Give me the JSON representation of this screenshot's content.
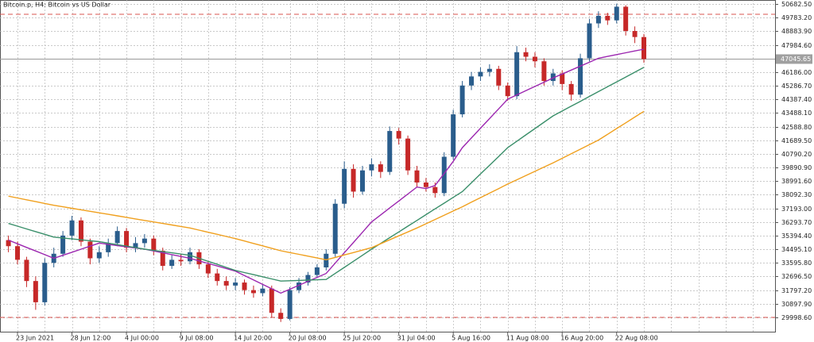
{
  "chart_data": {
    "type": "candlestick",
    "title": "Bitcoin.p, H4:  Bitcoin vs US Dollar",
    "categories": [
      null,
      "23 Jun 2021",
      null,
      null,
      null,
      null,
      null,
      "28 Jun 12:00",
      null,
      null,
      null,
      null,
      null,
      "4 Jul 00:00",
      null,
      null,
      null,
      null,
      null,
      "9 Jul 08:00",
      null,
      null,
      null,
      null,
      null,
      "14 Jul 20:00",
      null,
      null,
      null,
      null,
      null,
      "20 Jul 08:00",
      null,
      null,
      null,
      null,
      null,
      "25 Jul 20:00",
      null,
      null,
      null,
      null,
      null,
      "31 Jul 04:00",
      null,
      null,
      null,
      null,
      null,
      "5 Aug 16:00",
      null,
      null,
      null,
      null,
      null,
      "11 Aug 08:00",
      null,
      null,
      null,
      null,
      null,
      "16 Aug 20:00",
      null,
      null,
      null,
      null,
      null,
      "22 Aug 08:00",
      null,
      null,
      null
    ],
    "open": [
      35100,
      34700,
      33800,
      32400,
      31000,
      33600,
      34200,
      35400,
      36400,
      35000,
      33900,
      34300,
      34900,
      35700,
      34600,
      34900,
      35200,
      34400,
      33400,
      33800,
      33700,
      34300,
      33500,
      32900,
      32400,
      32100,
      32300,
      31800,
      31600,
      31900,
      30300,
      29900,
      31800,
      32300,
      32800,
      33300,
      34200,
      37500,
      39800,
      38300,
      39700,
      40100,
      39600,
      42300,
      41800,
      39700,
      38900,
      38600,
      38200,
      40600,
      43400,
      45300,
      45900,
      46200,
      46400,
      45300,
      44600,
      47500,
      47200,
      46900,
      45600,
      46100,
      45400,
      44700,
      47100,
      49400,
      49900,
      49600,
      50500,
      48900,
      48500
    ],
    "high": [
      35400,
      35000,
      34000,
      32700,
      33900,
      34600,
      35700,
      36700,
      36600,
      35200,
      34700,
      35200,
      36000,
      35900,
      35300,
      35500,
      35400,
      34600,
      34100,
      34200,
      34600,
      34500,
      33700,
      33200,
      32700,
      32600,
      32500,
      32100,
      32200,
      32100,
      30600,
      32000,
      32600,
      33000,
      33500,
      34500,
      37800,
      40300,
      40100,
      40000,
      40500,
      40300,
      42600,
      42500,
      42000,
      40000,
      39200,
      38900,
      40900,
      43700,
      45600,
      46200,
      46500,
      46700,
      46600,
      45500,
      47900,
      47800,
      47500,
      47100,
      46400,
      46300,
      45600,
      47400,
      49700,
      50200,
      50100,
      50700,
      50600,
      49200,
      48700
    ],
    "low": [
      34300,
      33500,
      32000,
      30500,
      30800,
      33300,
      34000,
      35100,
      34700,
      33500,
      33600,
      34000,
      34700,
      34300,
      34300,
      34600,
      34100,
      33100,
      33200,
      33400,
      33500,
      33200,
      32600,
      32100,
      31800,
      31800,
      31500,
      31300,
      31400,
      30000,
      29700,
      29800,
      31600,
      32100,
      32600,
      33100,
      34000,
      37200,
      37900,
      38100,
      39300,
      39200,
      39400,
      41400,
      39400,
      38600,
      38300,
      37900,
      38000,
      40400,
      43200,
      45000,
      45600,
      45900,
      45000,
      44300,
      44400,
      46900,
      46500,
      45300,
      45300,
      45000,
      44300,
      44500,
      46900,
      49100,
      49300,
      49400,
      48600,
      48100,
      46800
    ],
    "close": [
      34700,
      33800,
      32400,
      31000,
      33600,
      34200,
      35400,
      36400,
      35000,
      33900,
      34300,
      34900,
      35700,
      34600,
      34900,
      35200,
      34400,
      33400,
      33800,
      33700,
      34300,
      33500,
      32900,
      32400,
      32100,
      32300,
      31800,
      31600,
      31900,
      30300,
      29900,
      31800,
      32300,
      32800,
      33300,
      34200,
      37500,
      39800,
      38300,
      39700,
      40100,
      39600,
      42300,
      41800,
      39700,
      38900,
      38600,
      38200,
      40600,
      43400,
      45300,
      45900,
      46200,
      46400,
      45300,
      44600,
      47500,
      47200,
      46900,
      45600,
      46100,
      45400,
      44700,
      47100,
      49400,
      49900,
      49600,
      50500,
      48900,
      48500,
      47045.65
    ],
    "up_color": "#2a5d8c",
    "down_color": "#c62828",
    "series": [
      {
        "color": "#9c27b0",
        "values": [
          35100,
          34860,
          34620,
          34380,
          34140,
          33900,
          34100,
          34300,
          34500,
          34700,
          34900,
          34820,
          34740,
          34660,
          34580,
          34500,
          34380,
          34260,
          34140,
          34020,
          33900,
          33730,
          33560,
          33390,
          33220,
          33050,
          32760,
          32470,
          32180,
          31890,
          31600,
          31860,
          32120,
          32380,
          32640,
          32900,
          33580,
          34260,
          34940,
          35620,
          36300,
          36760,
          37220,
          37680,
          38140,
          38600,
          38500,
          38700,
          39500,
          40300,
          41200,
          41840,
          42480,
          43120,
          43760,
          44400,
          44680,
          44960,
          45240,
          45520,
          45800,
          46060,
          46320,
          46580,
          46840,
          47100,
          47220,
          47340,
          47460,
          47580,
          47700
        ]
      },
      {
        "color": "#3a8f6a",
        "values": [
          36200,
          36020,
          35840,
          35660,
          35480,
          35300,
          35240,
          35180,
          35120,
          35060,
          35000,
          34900,
          34800,
          34700,
          34600,
          34500,
          34420,
          34340,
          34260,
          34180,
          34100,
          33900,
          33700,
          33500,
          33300,
          33100,
          32960,
          32820,
          32680,
          32540,
          32400,
          32420,
          32440,
          32460,
          32480,
          32500,
          32900,
          33300,
          33700,
          34100,
          34500,
          34880,
          35260,
          35640,
          36020,
          36400,
          36780,
          37160,
          37540,
          37920,
          38300,
          38880,
          39460,
          40040,
          40620,
          41200,
          41620,
          42040,
          42460,
          42880,
          43300,
          43620,
          43940,
          44260,
          44580,
          44900,
          45220,
          45540,
          45860,
          46180,
          46500
        ]
      },
      {
        "color": "#f0a01e",
        "values": [
          38000,
          37880,
          37760,
          37640,
          37520,
          37400,
          37300,
          37200,
          37100,
          37000,
          36900,
          36800,
          36700,
          36600,
          36500,
          36400,
          36300,
          36200,
          36100,
          36000,
          35900,
          35760,
          35620,
          35480,
          35340,
          35200,
          35040,
          34880,
          34720,
          34560,
          34400,
          34280,
          34160,
          34040,
          33920,
          33800,
          33960,
          34120,
          34280,
          34440,
          34600,
          34860,
          35120,
          35380,
          35640,
          35900,
          36180,
          36460,
          36740,
          37020,
          37300,
          37600,
          37900,
          38200,
          38500,
          38800,
          39080,
          39360,
          39640,
          39920,
          40200,
          40500,
          40800,
          41100,
          41400,
          41700,
          42080,
          42460,
          42840,
          43220,
          43600
        ]
      }
    ],
    "levels": [
      50000,
      30000
    ],
    "level_color": "#d9534f",
    "last_price": {
      "value": 47045.65,
      "label": "47045.65"
    },
    "ylim": [
      29057,
      50944
    ],
    "yticks": [
      {
        "value": 50682.5,
        "label": "50682.50"
      },
      {
        "value": 49783.2,
        "label": "49783.20"
      },
      {
        "value": 48883.9,
        "label": "48883.90"
      },
      {
        "value": 47984.6,
        "label": "47984.60"
      },
      {
        "value": 46186,
        "label": "46186.00"
      },
      {
        "value": 45286.7,
        "label": "45286.70"
      },
      {
        "value": 44387.4,
        "label": "44387.40"
      },
      {
        "value": 43488.1,
        "label": "43488.10"
      },
      {
        "value": 42588.8,
        "label": "42588.80"
      },
      {
        "value": 41689.5,
        "label": "41689.50"
      },
      {
        "value": 40790.2,
        "label": "40790.20"
      },
      {
        "value": 39890.9,
        "label": "39890.90"
      },
      {
        "value": 38991.6,
        "label": "38991.60"
      },
      {
        "value": 38092.3,
        "label": "38092.30"
      },
      {
        "value": 37193,
        "label": "37193.00"
      },
      {
        "value": 36293.7,
        "label": "36293.70"
      },
      {
        "value": 35394.4,
        "label": "35394.40"
      },
      {
        "value": 34495.1,
        "label": "34495.10"
      },
      {
        "value": 33595.8,
        "label": "33595.80"
      },
      {
        "value": 32696.5,
        "label": "32696.50"
      },
      {
        "value": 31797.2,
        "label": "31797.20"
      },
      {
        "value": 30897.9,
        "label": "30897.90"
      },
      {
        "value": 29998.6,
        "label": "29998.60"
      }
    ],
    "grid": true
  }
}
